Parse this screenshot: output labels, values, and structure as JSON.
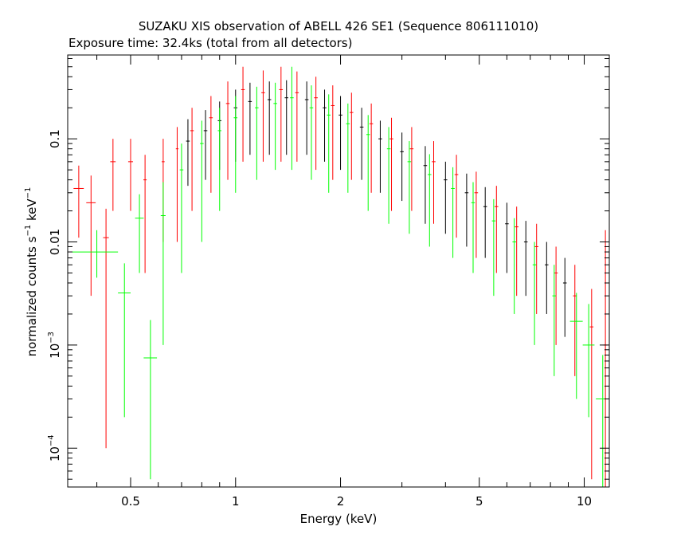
{
  "chart_data": {
    "type": "scatter",
    "title": "SUZAKU XIS observation of ABELL 426 SE1 (Sequence 806111010)",
    "subtitle": "Exposure time: 32.4ks (total from all detectors)",
    "xlabel": "Energy (keV)",
    "ylabel": {
      "prefix": "normalized counts s",
      "sup1": "−1",
      "mid": " keV",
      "sup2": "−1"
    },
    "xscale": "log",
    "yscale": "log",
    "xlim": [
      0.33,
      11.8
    ],
    "ylim": [
      4.2e-05,
      0.65
    ],
    "x_ticks": [
      {
        "value": 0.5,
        "label": "0.5"
      },
      {
        "value": 1,
        "label": "1"
      },
      {
        "value": 2,
        "label": "2"
      },
      {
        "value": 5,
        "label": "5"
      },
      {
        "value": 10,
        "label": "10"
      }
    ],
    "y_ticks": [
      {
        "value": 0.0001,
        "label": "10",
        "sup": "−4"
      },
      {
        "value": 0.001,
        "label": "10",
        "sup": "−3"
      },
      {
        "value": 0.01,
        "label": "0.01",
        "sup": ""
      },
      {
        "value": 0.1,
        "label": "0.1",
        "sup": ""
      }
    ],
    "series": [
      {
        "color": "#000000",
        "points": [
          {
            "x": 0.73,
            "y": 0.095,
            "yerr_lo": 0.06,
            "yerr_hi": 0.06
          },
          {
            "x": 0.82,
            "y": 0.12,
            "yerr_lo": 0.08,
            "yerr_hi": 0.07
          },
          {
            "x": 0.9,
            "y": 0.15,
            "yerr_lo": 0.1,
            "yerr_hi": 0.08
          },
          {
            "x": 1.0,
            "y": 0.2,
            "yerr_lo": 0.14,
            "yerr_hi": 0.1
          },
          {
            "x": 1.1,
            "y": 0.23,
            "yerr_lo": 0.16,
            "yerr_hi": 0.12
          },
          {
            "x": 1.25,
            "y": 0.24,
            "yerr_lo": 0.17,
            "yerr_hi": 0.12
          },
          {
            "x": 1.4,
            "y": 0.25,
            "yerr_lo": 0.18,
            "yerr_hi": 0.12
          },
          {
            "x": 1.6,
            "y": 0.24,
            "yerr_lo": 0.17,
            "yerr_hi": 0.12
          },
          {
            "x": 1.8,
            "y": 0.2,
            "yerr_lo": 0.14,
            "yerr_hi": 0.1
          },
          {
            "x": 2.0,
            "y": 0.17,
            "yerr_lo": 0.12,
            "yerr_hi": 0.09
          },
          {
            "x": 2.3,
            "y": 0.13,
            "yerr_lo": 0.09,
            "yerr_hi": 0.07
          },
          {
            "x": 2.6,
            "y": 0.1,
            "yerr_lo": 0.07,
            "yerr_hi": 0.05
          },
          {
            "x": 3.0,
            "y": 0.075,
            "yerr_lo": 0.05,
            "yerr_hi": 0.04
          },
          {
            "x": 3.5,
            "y": 0.055,
            "yerr_lo": 0.04,
            "yerr_hi": 0.03
          },
          {
            "x": 4.0,
            "y": 0.04,
            "yerr_lo": 0.028,
            "yerr_hi": 0.02
          },
          {
            "x": 4.6,
            "y": 0.03,
            "yerr_lo": 0.021,
            "yerr_hi": 0.016
          },
          {
            "x": 5.2,
            "y": 0.022,
            "yerr_lo": 0.015,
            "yerr_hi": 0.012
          },
          {
            "x": 6.0,
            "y": 0.015,
            "yerr_lo": 0.01,
            "yerr_hi": 0.009
          },
          {
            "x": 6.8,
            "y": 0.01,
            "yerr_lo": 0.007,
            "yerr_hi": 0.006
          },
          {
            "x": 7.8,
            "y": 0.006,
            "yerr_lo": 0.004,
            "yerr_hi": 0.004
          },
          {
            "x": 8.8,
            "y": 0.004,
            "yerr_lo": 0.0028,
            "yerr_hi": 0.003
          }
        ]
      },
      {
        "color": "#ff0000",
        "points": [
          {
            "x": 0.355,
            "y": 0.033,
            "yerr_lo": 0.022,
            "yerr_hi": 0.022,
            "xerr": 0.012
          },
          {
            "x": 0.385,
            "y": 0.024,
            "yerr_lo": 0.021,
            "yerr_hi": 0.02,
            "xerr": 0.012
          },
          {
            "x": 0.425,
            "y": 0.011,
            "yerr_lo": 0.0109,
            "yerr_hi": 0.01,
            "xerr": 0.008
          },
          {
            "x": 0.445,
            "y": 0.06,
            "yerr_lo": 0.04,
            "yerr_hi": 0.04,
            "xerr": 0.008
          },
          {
            "x": 0.5,
            "y": 0.06,
            "yerr_lo": 0.04,
            "yerr_hi": 0.04,
            "xerr": 0.008
          },
          {
            "x": 0.55,
            "y": 0.04,
            "yerr_lo": 0.035,
            "yerr_hi": 0.03,
            "xerr": 0.006
          },
          {
            "x": 0.62,
            "y": 0.06,
            "yerr_lo": 0.05,
            "yerr_hi": 0.04,
            "xerr": 0.006
          },
          {
            "x": 0.68,
            "y": 0.08,
            "yerr_lo": 0.07,
            "yerr_hi": 0.05,
            "xerr": 0.006
          },
          {
            "x": 0.75,
            "y": 0.12,
            "yerr_lo": 0.1,
            "yerr_hi": 0.08
          },
          {
            "x": 0.85,
            "y": 0.16,
            "yerr_lo": 0.13,
            "yerr_hi": 0.1
          },
          {
            "x": 0.95,
            "y": 0.22,
            "yerr_lo": 0.18,
            "yerr_hi": 0.14
          },
          {
            "x": 1.05,
            "y": 0.3,
            "yerr_lo": 0.24,
            "yerr_hi": 0.2
          },
          {
            "x": 1.2,
            "y": 0.28,
            "yerr_lo": 0.22,
            "yerr_hi": 0.18
          },
          {
            "x": 1.35,
            "y": 0.3,
            "yerr_lo": 0.24,
            "yerr_hi": 0.2
          },
          {
            "x": 1.5,
            "y": 0.28,
            "yerr_lo": 0.22,
            "yerr_hi": 0.17
          },
          {
            "x": 1.7,
            "y": 0.25,
            "yerr_lo": 0.2,
            "yerr_hi": 0.15
          },
          {
            "x": 1.9,
            "y": 0.21,
            "yerr_lo": 0.17,
            "yerr_hi": 0.12
          },
          {
            "x": 2.15,
            "y": 0.18,
            "yerr_lo": 0.14,
            "yerr_hi": 0.1
          },
          {
            "x": 2.45,
            "y": 0.14,
            "yerr_lo": 0.11,
            "yerr_hi": 0.08
          },
          {
            "x": 2.8,
            "y": 0.1,
            "yerr_lo": 0.08,
            "yerr_hi": 0.06
          },
          {
            "x": 3.2,
            "y": 0.08,
            "yerr_lo": 0.06,
            "yerr_hi": 0.05
          },
          {
            "x": 3.7,
            "y": 0.06,
            "yerr_lo": 0.045,
            "yerr_hi": 0.035
          },
          {
            "x": 4.3,
            "y": 0.045,
            "yerr_lo": 0.034,
            "yerr_hi": 0.025
          },
          {
            "x": 4.9,
            "y": 0.03,
            "yerr_lo": 0.023,
            "yerr_hi": 0.018
          },
          {
            "x": 5.6,
            "y": 0.022,
            "yerr_lo": 0.017,
            "yerr_hi": 0.013
          },
          {
            "x": 6.4,
            "y": 0.014,
            "yerr_lo": 0.011,
            "yerr_hi": 0.008
          },
          {
            "x": 7.3,
            "y": 0.009,
            "yerr_lo": 0.007,
            "yerr_hi": 0.006
          },
          {
            "x": 8.3,
            "y": 0.005,
            "yerr_lo": 0.004,
            "yerr_hi": 0.004
          },
          {
            "x": 9.4,
            "y": 0.003,
            "yerr_lo": 0.0025,
            "yerr_hi": 0.003
          },
          {
            "x": 10.5,
            "y": 0.0015,
            "yerr_lo": 0.00145,
            "yerr_hi": 0.002
          },
          {
            "x": 11.5,
            "y": 0.001,
            "yerr_lo": 0.00096,
            "yerr_hi": 0.012
          }
        ]
      },
      {
        "color": "#00ff00",
        "points": [
          {
            "x": 0.4,
            "y": 0.008,
            "yerr_lo": 0.0035,
            "yerr_hi": 0.005,
            "xerr": 0.06
          },
          {
            "x": 0.48,
            "y": 0.0032,
            "yerr_lo": 0.003,
            "yerr_hi": 0.003,
            "xerr": 0.02
          },
          {
            "x": 0.53,
            "y": 0.017,
            "yerr_lo": 0.012,
            "yerr_hi": 0.012,
            "xerr": 0.015
          },
          {
            "x": 0.57,
            "y": 0.00075,
            "yerr_lo": 0.0007,
            "yerr_hi": 0.001,
            "xerr": 0.025
          },
          {
            "x": 0.62,
            "y": 0.018,
            "yerr_lo": 0.017,
            "yerr_hi": 0.02,
            "xerr": 0.01
          },
          {
            "x": 0.7,
            "y": 0.05,
            "yerr_lo": 0.045,
            "yerr_hi": 0.04
          },
          {
            "x": 0.8,
            "y": 0.09,
            "yerr_lo": 0.08,
            "yerr_hi": 0.06
          },
          {
            "x": 0.9,
            "y": 0.12,
            "yerr_lo": 0.1,
            "yerr_hi": 0.08
          },
          {
            "x": 1.0,
            "y": 0.16,
            "yerr_lo": 0.13,
            "yerr_hi": 0.1
          },
          {
            "x": 1.15,
            "y": 0.2,
            "yerr_lo": 0.16,
            "yerr_hi": 0.12
          },
          {
            "x": 1.3,
            "y": 0.22,
            "yerr_lo": 0.17,
            "yerr_hi": 0.13
          },
          {
            "x": 1.45,
            "y": 0.25,
            "yerr_lo": 0.2,
            "yerr_hi": 0.25
          },
          {
            "x": 1.65,
            "y": 0.2,
            "yerr_lo": 0.16,
            "yerr_hi": 0.13
          },
          {
            "x": 1.85,
            "y": 0.17,
            "yerr_lo": 0.14,
            "yerr_hi": 0.1
          },
          {
            "x": 2.1,
            "y": 0.14,
            "yerr_lo": 0.11,
            "yerr_hi": 0.08
          },
          {
            "x": 2.4,
            "y": 0.11,
            "yerr_lo": 0.09,
            "yerr_hi": 0.06
          },
          {
            "x": 2.75,
            "y": 0.08,
            "yerr_lo": 0.065,
            "yerr_hi": 0.05
          },
          {
            "x": 3.15,
            "y": 0.06,
            "yerr_lo": 0.048,
            "yerr_hi": 0.035
          },
          {
            "x": 3.6,
            "y": 0.045,
            "yerr_lo": 0.036,
            "yerr_hi": 0.026
          },
          {
            "x": 4.2,
            "y": 0.033,
            "yerr_lo": 0.026,
            "yerr_hi": 0.02
          },
          {
            "x": 4.8,
            "y": 0.024,
            "yerr_lo": 0.019,
            "yerr_hi": 0.014
          },
          {
            "x": 5.5,
            "y": 0.016,
            "yerr_lo": 0.013,
            "yerr_hi": 0.01
          },
          {
            "x": 6.3,
            "y": 0.01,
            "yerr_lo": 0.008,
            "yerr_hi": 0.007
          },
          {
            "x": 7.2,
            "y": 0.006,
            "yerr_lo": 0.005,
            "yerr_hi": 0.004
          },
          {
            "x": 8.2,
            "y": 0.003,
            "yerr_lo": 0.0025,
            "yerr_hi": 0.003
          },
          {
            "x": 9.5,
            "y": 0.0017,
            "yerr_lo": 0.0014,
            "yerr_hi": 0.0015,
            "xerr": 0.4
          },
          {
            "x": 10.3,
            "y": 0.001,
            "yerr_lo": 0.0008,
            "yerr_hi": 0.0015,
            "xerr": 0.4
          },
          {
            "x": 11.3,
            "y": 0.0003,
            "yerr_lo": 0.00028,
            "yerr_hi": 0.0005,
            "xerr": 0.5
          }
        ]
      }
    ]
  }
}
